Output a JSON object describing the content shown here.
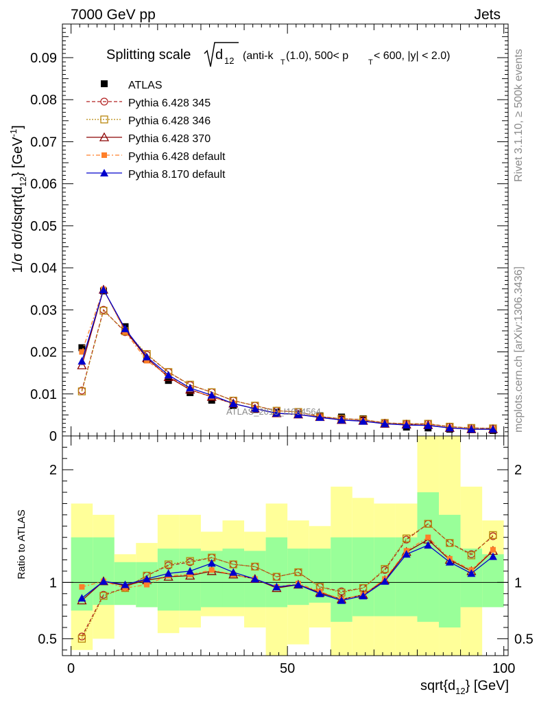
{
  "header": {
    "energy": "7000 GeV pp",
    "category": "Jets",
    "title_prefix": "Splitting scale",
    "title_sym": "d",
    "title_sub": "12",
    "title_cuts_1": "(anti-k",
    "title_cuts_sub": "T",
    "title_cuts_2": "(1.0), 500< p",
    "title_cuts_3": " < 600, |y| < 2.0)"
  },
  "side": {
    "rivet": "Rivet 3.1.10, ≥ 500k events",
    "mcplots": "mcplots.cern.ch [arXiv:1306.3436]"
  },
  "watermark": "ATLAS_2013_I1094564",
  "axes": {
    "ylabel_main": "1/σ dσ/dsqrt{d",
    "ylabel_main_sub": "12",
    "ylabel_main_end": "} [GeV",
    "ylabel_main_sup": "-1",
    "ylabel_main_close": "]",
    "ylabel_ratio": "Ratio to ATLAS",
    "xlabel": "sqrt{d",
    "xlabel_sub": "12",
    "xlabel_end": "} [GeV]"
  },
  "chart_data": {
    "type": "line",
    "main": {
      "xlim": [
        -2,
        101
      ],
      "ylim": [
        0,
        0.098
      ],
      "yticks": [
        0,
        0.01,
        0.02,
        0.03,
        0.04,
        0.05,
        0.06,
        0.07,
        0.08,
        0.09
      ],
      "ytick_labels": [
        "0",
        "0.01",
        "0.02",
        "0.03",
        "0.04",
        "0.05",
        "0.06",
        "0.07",
        "0.08",
        "0.09"
      ]
    },
    "ratio": {
      "ylim": [
        0.35,
        2.3
      ],
      "yticks": [
        0.5,
        1,
        2
      ],
      "ytick_labels": [
        "0.5",
        "1",
        "2"
      ]
    },
    "xticks": [
      0,
      50,
      100
    ],
    "xtick_labels": [
      "0",
      "50",
      "100"
    ],
    "bin_edges": [
      0,
      5,
      10,
      15,
      20,
      25,
      30,
      35,
      40,
      45,
      50,
      55,
      60,
      65,
      70,
      75,
      80,
      85,
      90,
      95,
      100
    ],
    "x": [
      2.5,
      7.5,
      12.5,
      17.5,
      22.5,
      27.5,
      32.5,
      37.5,
      42.5,
      47.5,
      52.5,
      57.5,
      62.5,
      67.5,
      72.5,
      77.5,
      82.5,
      87.5,
      92.5,
      97.5
    ],
    "data": {
      "name": "ATLAS",
      "values": [
        0.021,
        0.0345,
        0.026,
        0.0182,
        0.0132,
        0.0103,
        0.0085,
        0.0072,
        0.0063,
        0.0057,
        0.0052,
        0.0048,
        0.0045,
        0.0041,
        0.0028,
        0.0021,
        0.0019,
        0.0016,
        0.0015,
        0.0013
      ]
    },
    "band_inner": {
      "low": [
        0.75,
        0.8,
        0.8,
        0.78,
        0.75,
        0.75,
        0.78,
        0.78,
        0.78,
        0.78,
        0.8,
        0.82,
        0.65,
        0.7,
        0.7,
        0.7,
        0.65,
        0.6,
        0.78,
        0.78
      ],
      "high": [
        1.4,
        1.4,
        1.18,
        1.18,
        1.3,
        1.3,
        1.28,
        1.3,
        1.28,
        1.4,
        1.3,
        1.3,
        1.4,
        1.4,
        1.4,
        1.4,
        1.8,
        1.6,
        1.3,
        1.25
      ]
    },
    "band_outer": {
      "low": [
        0.4,
        0.5,
        0.8,
        0.78,
        0.55,
        0.6,
        0.7,
        0.7,
        0.6,
        0.35,
        0.45,
        0.6,
        0.35,
        0.35,
        0.35,
        0.35,
        0.35,
        0.35,
        0.35,
        0.85
      ],
      "high": [
        1.7,
        1.6,
        1.25,
        1.35,
        1.6,
        1.6,
        1.45,
        1.55,
        1.45,
        1.7,
        1.55,
        1.5,
        1.85,
        1.75,
        1.7,
        1.7,
        2.3,
        2.3,
        1.85,
        1.55
      ]
    },
    "series": [
      {
        "name": "Pythia 6.428 345",
        "color": "#b22222",
        "dash": "5,3",
        "marker": "open-circle",
        "values": [
          0.0108,
          0.03,
          0.0247,
          0.0193,
          0.0152,
          0.0121,
          0.0104,
          0.0084,
          0.0072,
          0.006,
          0.0057,
          0.0046,
          0.0041,
          0.0039,
          0.0031,
          0.0029,
          0.0029,
          0.0022,
          0.0019,
          0.0018
        ],
        "ratio": [
          0.52,
          0.89,
          0.95,
          1.06,
          1.15,
          1.18,
          1.22,
          1.16,
          1.14,
          1.05,
          1.09,
          0.96,
          0.92,
          0.95,
          1.11,
          1.38,
          1.52,
          1.35,
          1.25,
          1.41
        ]
      },
      {
        "name": "Pythia 6.428 346",
        "color": "#b8860b",
        "dash": "2,2",
        "marker": "open-square",
        "values": [
          0.0106,
          0.0298,
          0.0249,
          0.0195,
          0.0152,
          0.0122,
          0.0104,
          0.0084,
          0.0072,
          0.006,
          0.0057,
          0.0046,
          0.0041,
          0.0039,
          0.0031,
          0.0029,
          0.0029,
          0.0022,
          0.0019,
          0.0018
        ],
        "ratio": [
          0.5,
          0.88,
          0.95,
          1.06,
          1.16,
          1.19,
          1.22,
          1.16,
          1.14,
          1.05,
          1.09,
          0.96,
          0.91,
          0.95,
          1.12,
          1.39,
          1.52,
          1.35,
          1.24,
          1.42
        ]
      },
      {
        "name": "Pythia 6.428 370",
        "color": "#8b0000",
        "dash": "",
        "marker": "open-triangle",
        "values": [
          0.0168,
          0.0348,
          0.0252,
          0.0185,
          0.014,
          0.011,
          0.0093,
          0.0077,
          0.0065,
          0.0054,
          0.0051,
          0.0045,
          0.0038,
          0.0036,
          0.0029,
          0.0027,
          0.0026,
          0.0019,
          0.0016,
          0.0016
        ],
        "ratio": [
          0.84,
          1.01,
          0.97,
          1.02,
          1.05,
          1.06,
          1.1,
          1.07,
          1.03,
          0.95,
          0.98,
          0.91,
          0.85,
          0.89,
          1.02,
          1.27,
          1.38,
          1.2,
          1.1,
          1.28
        ]
      },
      {
        "name": "Pythia 6.428 default",
        "color": "#ff7f2a",
        "dash": "6,3,2,3",
        "marker": "filled-square",
        "values": [
          0.02,
          0.0349,
          0.0248,
          0.0179,
          0.0143,
          0.0111,
          0.0093,
          0.0077,
          0.0065,
          0.0054,
          0.0051,
          0.0045,
          0.0038,
          0.0036,
          0.0029,
          0.0027,
          0.0026,
          0.0019,
          0.0016,
          0.0016
        ],
        "ratio": [
          0.96,
          1.01,
          0.95,
          0.98,
          1.06,
          1.07,
          1.11,
          1.07,
          1.03,
          0.96,
          0.99,
          0.92,
          0.85,
          0.89,
          1.03,
          1.28,
          1.4,
          1.21,
          1.11,
          1.29
        ]
      },
      {
        "name": "Pythia 8.170 default",
        "color": "#0000cc",
        "dash": "",
        "marker": "filled-triangle",
        "values": [
          0.0178,
          0.0348,
          0.0255,
          0.0188,
          0.0145,
          0.0114,
          0.0097,
          0.0077,
          0.0065,
          0.0054,
          0.0051,
          0.0044,
          0.0038,
          0.0035,
          0.0029,
          0.0026,
          0.0025,
          0.0019,
          0.0016,
          0.0016
        ],
        "ratio": [
          0.86,
          1.01,
          0.98,
          1.03,
          1.08,
          1.1,
          1.17,
          1.09,
          1.03,
          0.96,
          0.98,
          0.9,
          0.84,
          0.88,
          1.01,
          1.25,
          1.33,
          1.18,
          1.08,
          1.23
        ]
      }
    ],
    "band_colors": {
      "inner": "#99ff99",
      "outer": "#ffff99"
    }
  }
}
